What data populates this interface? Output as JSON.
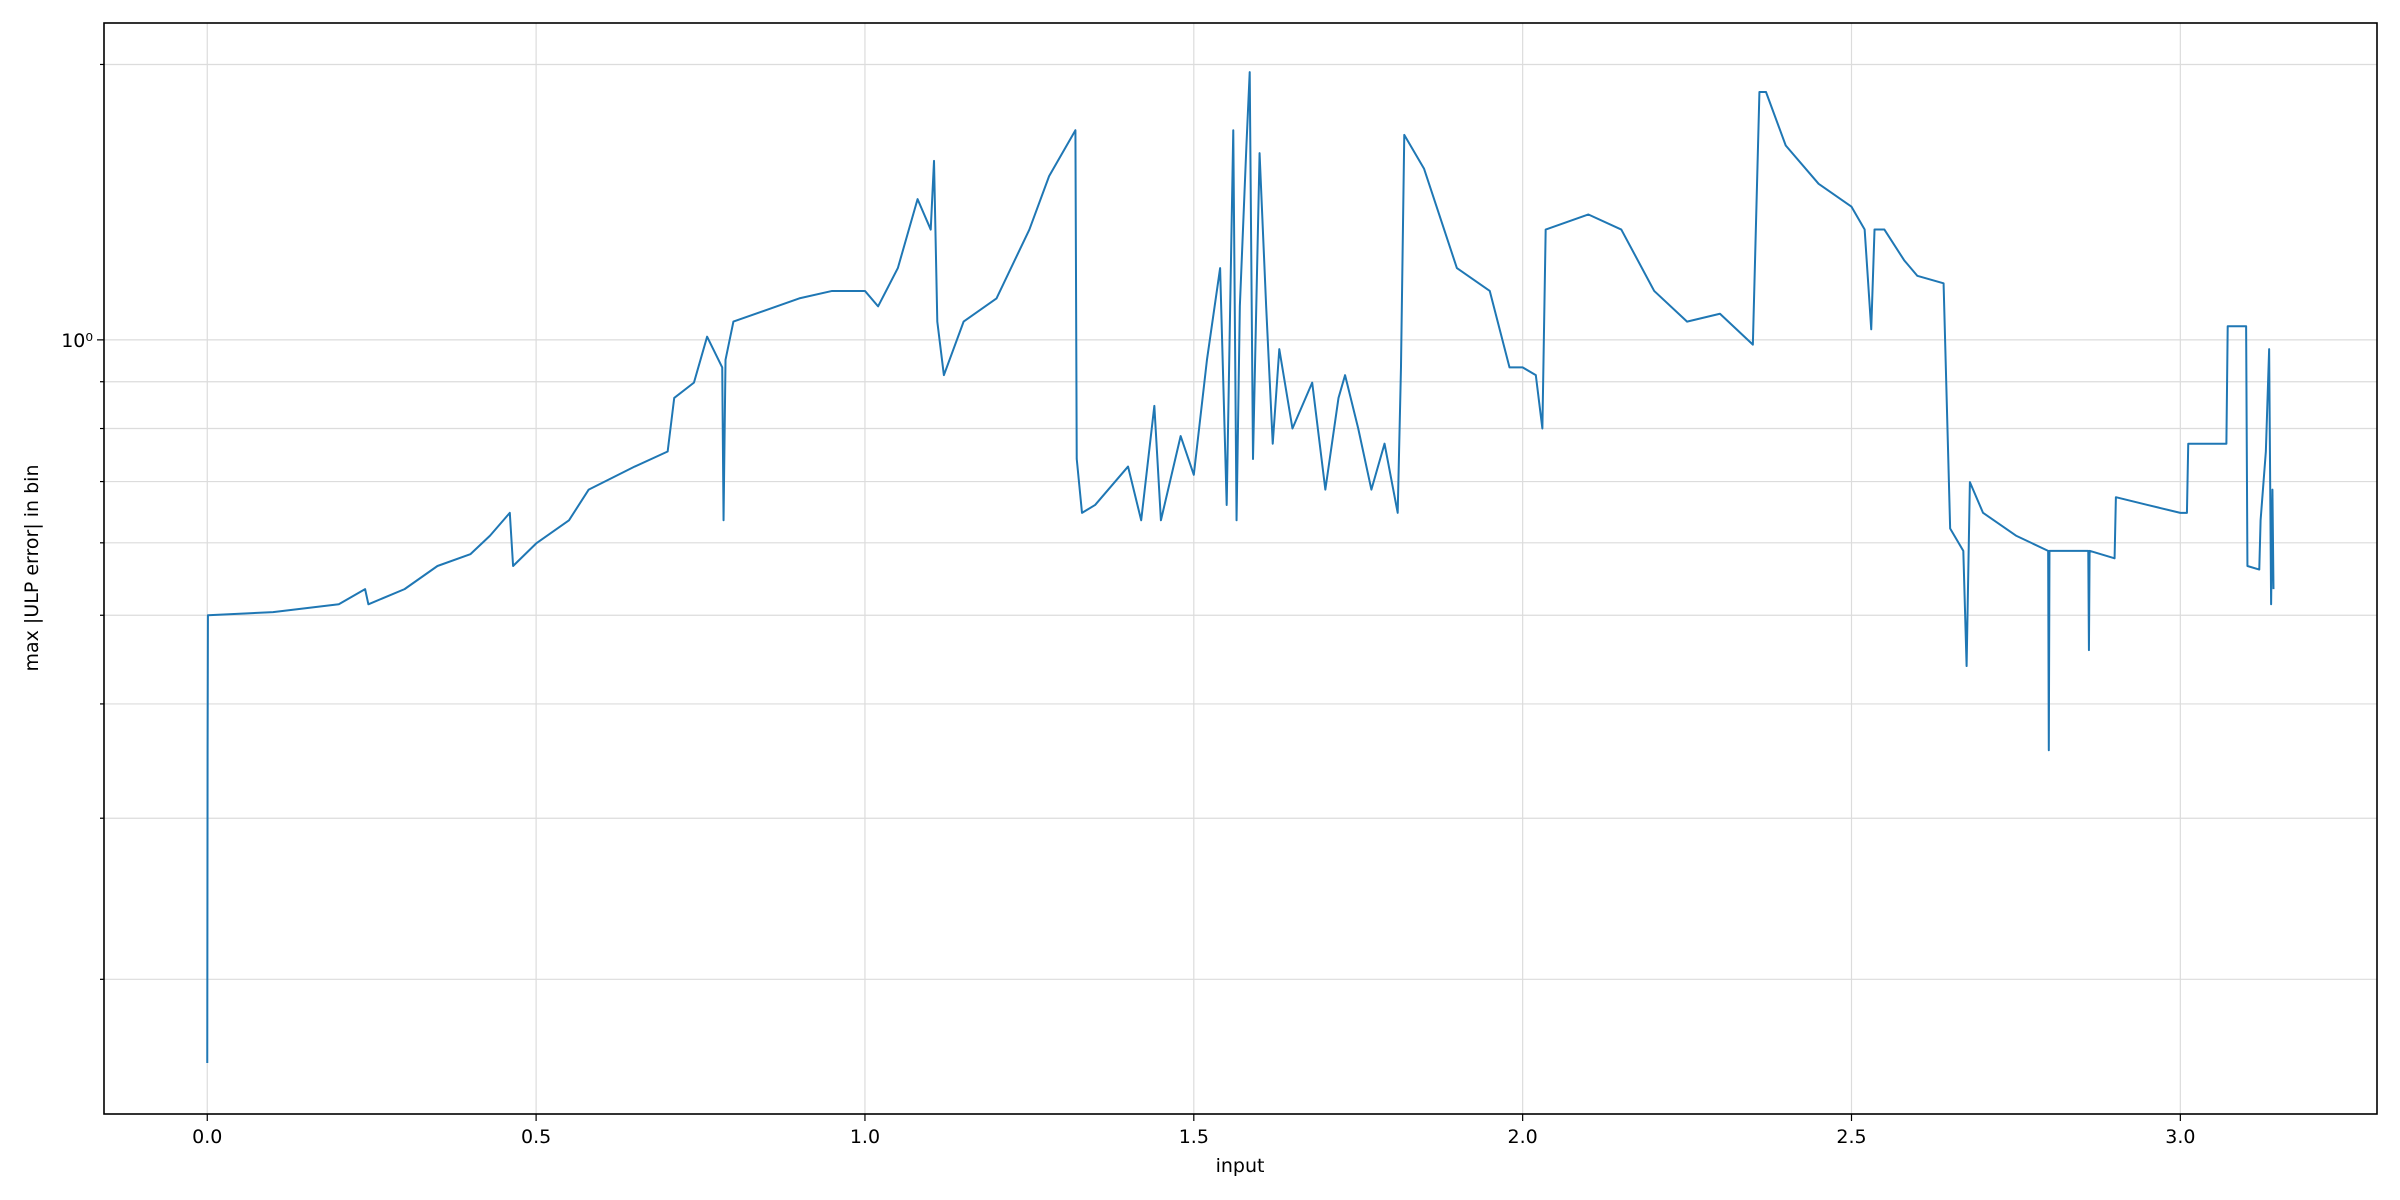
{
  "chart_data": {
    "type": "line",
    "xlabel": "input",
    "ylabel": "max |ULP error| in bin",
    "log_y": true,
    "grid": true,
    "xlim": [
      -0.157,
      3.299
    ],
    "ylim": [
      0.1425,
      2.22
    ],
    "xticks": [
      {
        "value": 0,
        "label": "0.0"
      },
      0.5,
      {
        "value": 1,
        "label": "1.0"
      },
      1.5,
      {
        "value": 2,
        "label": "2.0"
      },
      2.5,
      {
        "value": 3,
        "label": "3.0"
      }
    ],
    "yticks": [
      {
        "value": 1,
        "label": "10⁰"
      }
    ],
    "yminor_ticks": [
      0.2,
      0.3,
      0.4,
      0.5,
      0.6,
      0.7,
      0.8,
      0.9,
      2
    ],
    "series": [
      {
        "color": "#1f77b4",
        "x": [
          0.0,
          0.0005,
          0.001,
          0.1,
          0.2,
          0.24,
          0.245,
          0.3,
          0.35,
          0.4,
          0.43,
          0.46,
          0.465,
          0.5,
          0.55,
          0.58,
          0.65,
          0.7,
          0.71,
          0.74,
          0.76,
          0.783,
          0.785,
          0.788,
          0.8,
          0.9,
          0.95,
          1.0,
          1.02,
          1.05,
          1.08,
          1.1,
          1.105,
          1.11,
          1.12,
          1.15,
          1.2,
          1.25,
          1.28,
          1.32,
          1.322,
          1.33,
          1.35,
          1.4,
          1.42,
          1.44,
          1.45,
          1.48,
          1.5,
          1.52,
          1.54,
          1.55,
          1.56,
          1.565,
          1.57,
          1.58,
          1.585,
          1.59,
          1.6,
          1.61,
          1.62,
          1.63,
          1.65,
          1.68,
          1.7,
          1.72,
          1.73,
          1.75,
          1.77,
          1.79,
          1.81,
          1.815,
          1.82,
          1.85,
          1.9,
          1.95,
          1.98,
          2.0,
          2.02,
          2.03,
          2.035,
          2.1,
          2.15,
          2.2,
          2.25,
          2.3,
          2.35,
          2.36,
          2.37,
          2.4,
          2.45,
          2.5,
          2.52,
          2.53,
          2.535,
          2.55,
          2.58,
          2.6,
          2.64,
          2.65,
          2.67,
          2.675,
          2.68,
          2.7,
          2.75,
          2.799,
          2.8,
          2.801,
          2.86,
          2.861,
          2.862,
          2.9,
          2.902,
          2.95,
          3.0,
          3.01,
          3.012,
          3.07,
          3.072,
          3.1,
          3.102,
          3.12,
          3.122,
          3.13,
          3.135,
          3.138,
          3.14,
          3.1416
        ],
        "values": [
          0.162,
          0.356,
          0.5,
          0.504,
          0.514,
          0.534,
          0.514,
          0.534,
          0.566,
          0.583,
          0.611,
          0.647,
          0.566,
          0.599,
          0.635,
          0.686,
          0.727,
          0.755,
          0.864,
          0.898,
          1.008,
          0.933,
          0.635,
          0.951,
          1.047,
          1.11,
          1.131,
          1.131,
          1.088,
          1.198,
          1.425,
          1.32,
          1.569,
          1.047,
          0.915,
          1.047,
          1.11,
          1.32,
          1.51,
          1.695,
          0.741,
          0.647,
          0.66,
          0.727,
          0.635,
          0.847,
          0.635,
          0.785,
          0.712,
          0.951,
          1.198,
          0.66,
          1.695,
          0.635,
          1.088,
          1.631,
          1.962,
          0.741,
          1.6,
          1.088,
          0.77,
          0.977,
          0.8,
          0.898,
          0.686,
          0.864,
          0.915,
          0.8,
          0.686,
          0.77,
          0.647,
          0.933,
          1.675,
          1.539,
          1.198,
          1.131,
          0.933,
          0.933,
          0.915,
          0.8,
          1.32,
          1.371,
          1.32,
          1.131,
          1.047,
          1.068,
          0.988,
          1.866,
          1.866,
          1.631,
          1.481,
          1.398,
          1.32,
          1.027,
          1.32,
          1.32,
          1.222,
          1.175,
          1.153,
          0.622,
          0.588,
          0.44,
          0.699,
          0.647,
          0.611,
          0.588,
          0.356,
          0.588,
          0.588,
          0.458,
          0.588,
          0.577,
          0.673,
          0.66,
          0.647,
          0.647,
          0.77,
          0.77,
          1.035,
          1.035,
          0.566,
          0.561,
          0.635,
          0.755,
          0.977,
          0.514,
          0.686,
          0.534
        ]
      }
    ]
  }
}
